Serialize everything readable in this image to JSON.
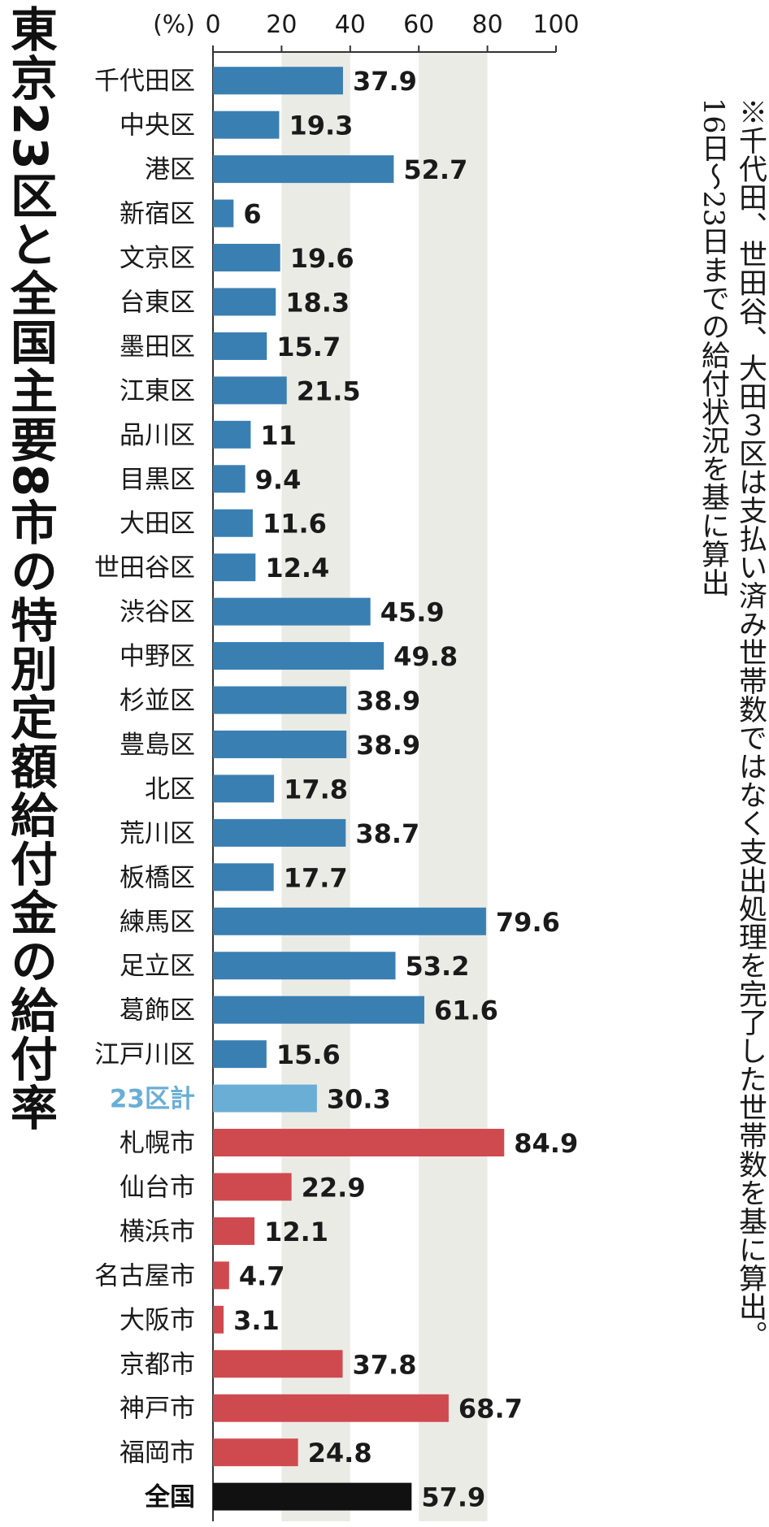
{
  "chart_data": {
    "type": "bar",
    "orientation": "horizontal",
    "title": "東京23区と全国主要8市の特別定額給付金の給付率",
    "unit": "(%)",
    "note": "※千代田、世田谷、大田３区は支払い済み世帯数ではなく支出処理を完了した世帯数を基に算出。\n16日～23日までの給付状況を基に算出",
    "xlim": [
      0,
      100
    ],
    "ticks": [
      "0",
      "20",
      "40",
      "60",
      "80",
      "100"
    ],
    "tick_values": [
      0,
      20,
      40,
      60,
      80,
      100
    ],
    "colors": {
      "ward": "#3a7fb2",
      "ward_total": "#6aaed6",
      "city": "#cf4a4f",
      "national": "#111111",
      "band": "#ebebe6"
    },
    "categories": [
      "千代田区",
      "中央区",
      "港区",
      "新宿区",
      "文京区",
      "台東区",
      "墨田区",
      "江東区",
      "品川区",
      "目黒区",
      "大田区",
      "世田谷区",
      "渋谷区",
      "中野区",
      "杉並区",
      "豊島区",
      "北区",
      "荒川区",
      "板橋区",
      "練馬区",
      "足立区",
      "葛飾区",
      "江戸川区",
      "23区計",
      "札幌市",
      "仙台市",
      "横浜市",
      "名古屋市",
      "大阪市",
      "京都市",
      "神戸市",
      "福岡市",
      "全国"
    ],
    "values": [
      37.9,
      19.3,
      52.7,
      6,
      19.6,
      18.3,
      15.7,
      21.5,
      11,
      9.4,
      11.6,
      12.4,
      45.9,
      49.8,
      38.9,
      38.9,
      17.8,
      38.7,
      17.7,
      79.6,
      53.2,
      61.6,
      15.6,
      30.3,
      84.9,
      22.9,
      12.1,
      4.7,
      3.1,
      37.8,
      68.7,
      24.8,
      57.9
    ],
    "value_labels": [
      "37.9",
      "19.3",
      "52.7",
      "6",
      "19.6",
      "18.3",
      "15.7",
      "21.5",
      "11",
      "9.4",
      "11.6",
      "12.4",
      "45.9",
      "49.8",
      "38.9",
      "38.9",
      "17.8",
      "38.7",
      "17.7",
      "79.6",
      "53.2",
      "61.6",
      "15.6",
      "30.3",
      "84.9",
      "22.9",
      "12.1",
      "4.7",
      "3.1",
      "37.8",
      "68.7",
      "24.8",
      "57.9"
    ],
    "groups": [
      "ward",
      "ward",
      "ward",
      "ward",
      "ward",
      "ward",
      "ward",
      "ward",
      "ward",
      "ward",
      "ward",
      "ward",
      "ward",
      "ward",
      "ward",
      "ward",
      "ward",
      "ward",
      "ward",
      "ward",
      "ward",
      "ward",
      "ward",
      "ward_total",
      "city",
      "city",
      "city",
      "city",
      "city",
      "city",
      "city",
      "city",
      "national"
    ],
    "grid": "alternating-bands"
  }
}
